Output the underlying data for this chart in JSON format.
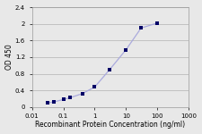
{
  "x": [
    0.032,
    0.05,
    0.1,
    0.16,
    0.4,
    1.0,
    3.0,
    10.0,
    30.0,
    100.0
  ],
  "y": [
    0.1,
    0.12,
    0.18,
    0.22,
    0.32,
    0.48,
    0.9,
    1.38,
    1.9,
    2.02
  ],
  "xlim": [
    0.01,
    1000
  ],
  "ylim": [
    0,
    2.4
  ],
  "yticks": [
    0,
    0.4,
    0.8,
    1.2,
    1.6,
    2.0,
    2.4
  ],
  "ytick_labels": [
    "0",
    "0.4",
    "0.8",
    "1.2",
    "1.6",
    "2",
    "2.4"
  ],
  "xtick_positions": [
    0.01,
    0.1,
    1,
    10,
    100,
    1000
  ],
  "xtick_labels": [
    "0.01",
    "0.1",
    "1",
    "10",
    "100",
    "1000"
  ],
  "xlabel": "Recombinant Protein Concentration (ng/ml)",
  "ylabel": "OD 450",
  "line_color": "#aaaadd",
  "marker_color": "#000066",
  "bg_color": "#e8e8e8",
  "plot_bg": "#e8e8e8",
  "grid_color": "#bbbbbb",
  "label_fontsize": 5.5,
  "tick_fontsize": 5.0
}
